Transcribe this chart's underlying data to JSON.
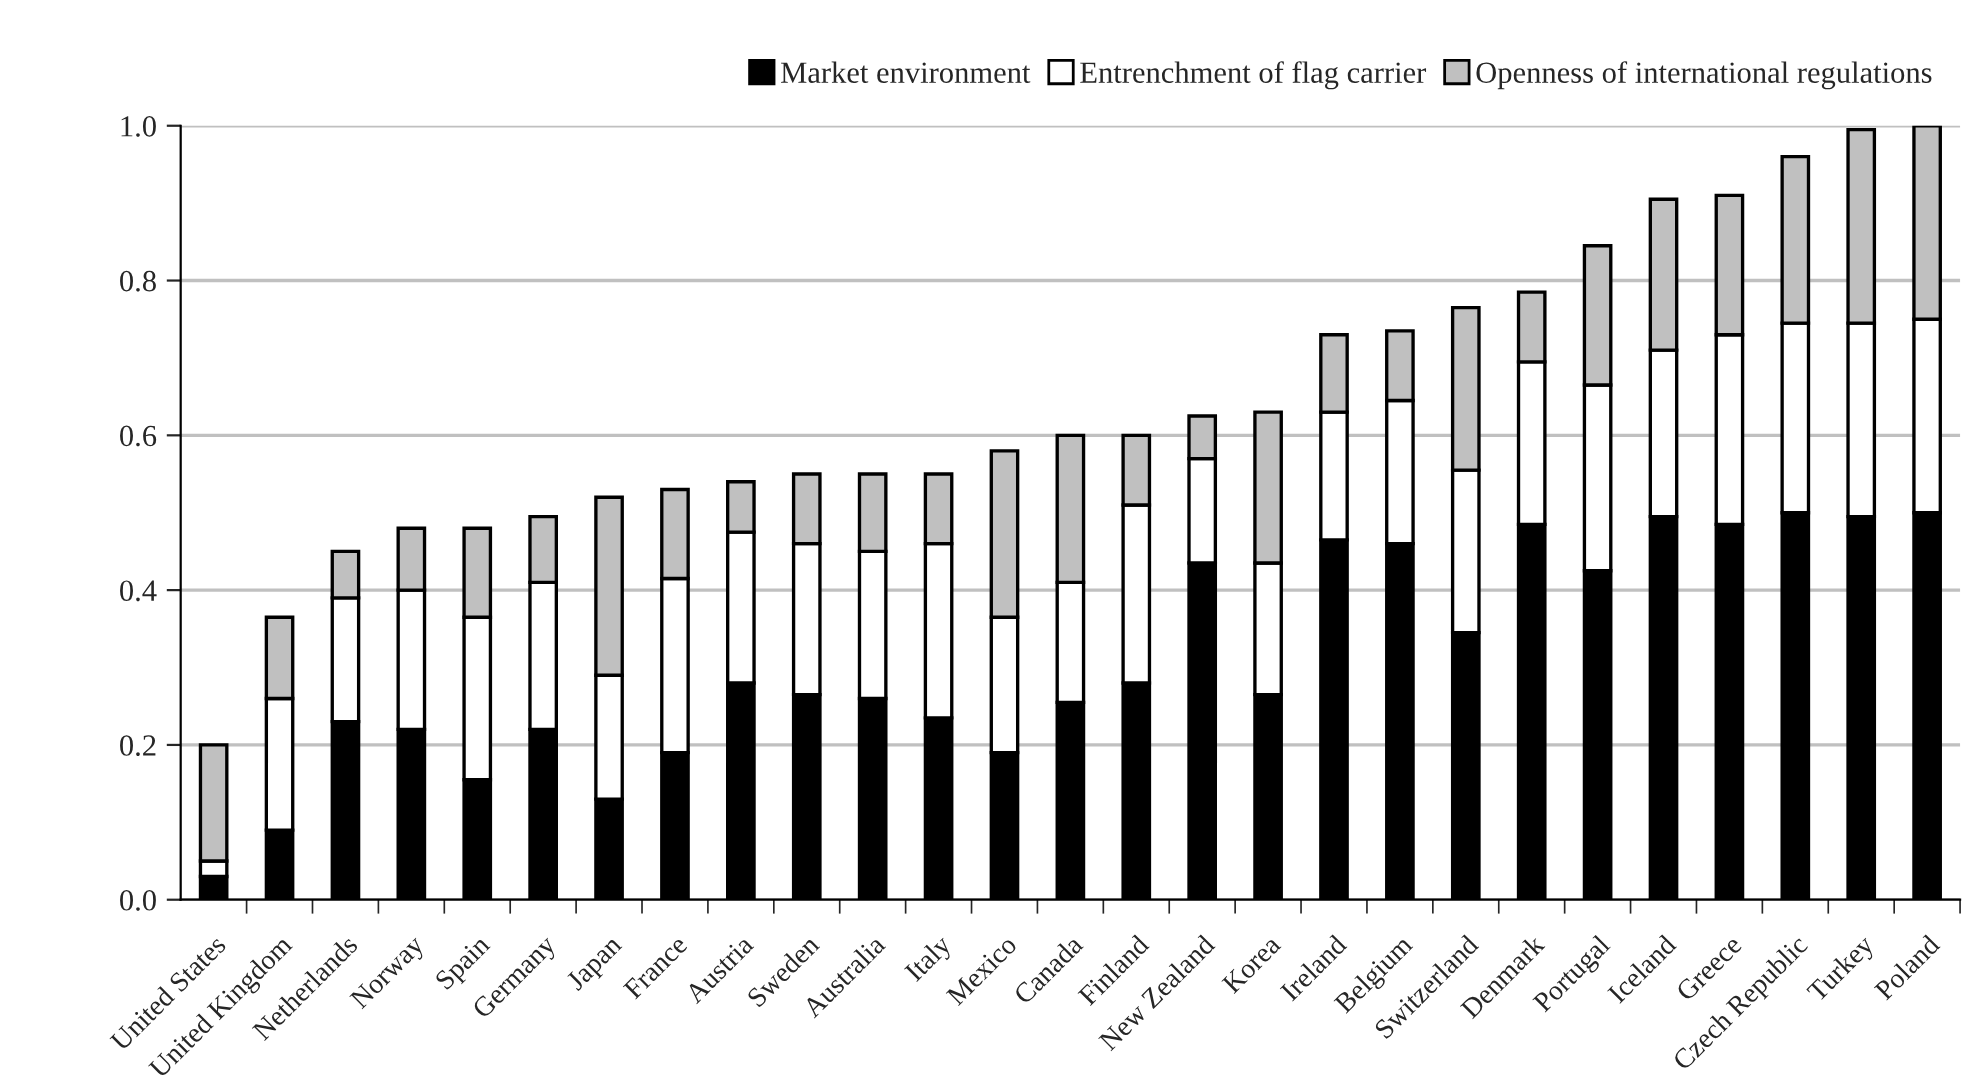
{
  "chart_data": {
    "type": "bar",
    "stacked": true,
    "categories": [
      "United States",
      "United Kingdom",
      "Netherlands",
      "Norway",
      "Spain",
      "Germany",
      "Japan",
      "France",
      "Austria",
      "Sweden",
      "Australia",
      "Italy",
      "Mexico",
      "Canada",
      "Finland",
      "New Zealand",
      "Korea",
      "Ireland",
      "Belgium",
      "Switzerland",
      "Denmark",
      "Portugal",
      "Iceland",
      "Greece",
      "Czech Republic",
      "Turkey",
      "Poland"
    ],
    "series": [
      {
        "name": "Market environment",
        "color": "#000000",
        "values": [
          0.03,
          0.09,
          0.23,
          0.22,
          0.155,
          0.22,
          0.13,
          0.19,
          0.28,
          0.265,
          0.26,
          0.235,
          0.19,
          0.255,
          0.28,
          0.435,
          0.265,
          0.465,
          0.46,
          0.345,
          0.485,
          0.425,
          0.495,
          0.485,
          0.5,
          0.495,
          0.5
        ]
      },
      {
        "name": "Entrenchment of flag carrier",
        "color": "#ffffff",
        "values": [
          0.02,
          0.17,
          0.16,
          0.18,
          0.21,
          0.19,
          0.16,
          0.225,
          0.195,
          0.195,
          0.19,
          0.225,
          0.175,
          0.155,
          0.23,
          0.135,
          0.17,
          0.165,
          0.185,
          0.21,
          0.21,
          0.24,
          0.215,
          0.245,
          0.245,
          0.25,
          0.25
        ]
      },
      {
        "name": "Openness of international regulations",
        "color": "#c0c0c0",
        "values": [
          0.15,
          0.105,
          0.06,
          0.08,
          0.115,
          0.085,
          0.23,
          0.115,
          0.065,
          0.09,
          0.1,
          0.09,
          0.215,
          0.19,
          0.09,
          0.055,
          0.195,
          0.1,
          0.09,
          0.21,
          0.09,
          0.18,
          0.195,
          0.18,
          0.215,
          0.25,
          0.25
        ]
      }
    ],
    "ylim": [
      0,
      1
    ],
    "yticks": [
      {
        "value": 0,
        "label": "0.0"
      },
      {
        "value": 0.2,
        "label": "0.2"
      },
      {
        "value": 0.4,
        "label": "0.4"
      },
      {
        "value": 0.6,
        "label": "0.6"
      },
      {
        "value": 0.8,
        "label": "0.8"
      },
      {
        "value": 1,
        "label": "1.0"
      }
    ],
    "grid": "y",
    "legend": "top right"
  }
}
